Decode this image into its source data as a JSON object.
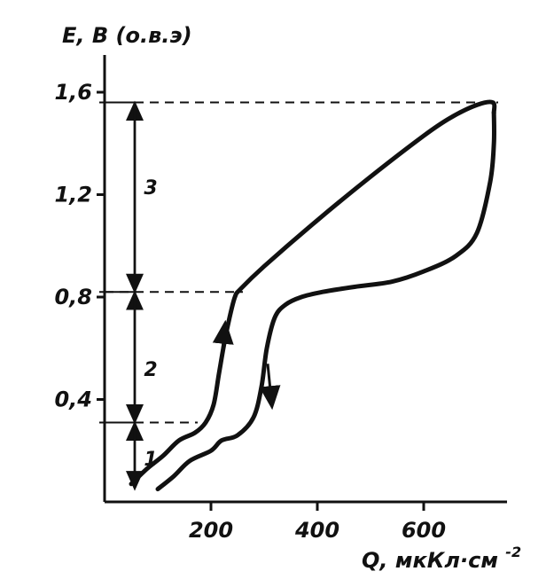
{
  "chart_data": {
    "type": "line",
    "title": "",
    "ylabel": "E, B (o.в.э)",
    "xlabel": "Q, мкКл·см",
    "xlabel_exp": "-2",
    "xlim": [
      0,
      760
    ],
    "ylim": [
      0,
      1.6
    ],
    "x_ticks": [
      {
        "value": 200,
        "label": "200"
      },
      {
        "value": 400,
        "label": "400"
      },
      {
        "value": 600,
        "label": "600"
      }
    ],
    "y_ticks": [
      {
        "value": 0.4,
        "label": "0,4"
      },
      {
        "value": 0.8,
        "label": "0,8"
      },
      {
        "value": 1.2,
        "label": "1,2"
      },
      {
        "value": 1.6,
        "label": "1,6"
      }
    ],
    "grid": false,
    "legend": "none",
    "series": [
      {
        "direction": "anodic (up)",
        "x": [
          50,
          80,
          110,
          140,
          170,
          190,
          205,
          215,
          225,
          235,
          245,
          255,
          300,
          400,
          500,
          600,
          650,
          700,
          730,
          732
        ],
        "y": [
          0.07,
          0.13,
          0.18,
          0.24,
          0.27,
          0.31,
          0.38,
          0.5,
          0.62,
          0.72,
          0.8,
          0.83,
          0.92,
          1.1,
          1.27,
          1.43,
          1.5,
          1.55,
          1.56,
          1.52
        ]
      },
      {
        "direction": "cathodic (down)",
        "x": [
          732,
          732,
          725,
          700,
          660,
          600,
          540,
          470,
          410,
          370,
          340,
          320,
          305,
          295,
          280,
          250,
          220,
          200,
          160,
          130,
          100
        ],
        "y": [
          1.52,
          1.4,
          1.25,
          1.05,
          0.96,
          0.9,
          0.86,
          0.84,
          0.82,
          0.8,
          0.77,
          0.72,
          0.6,
          0.45,
          0.33,
          0.26,
          0.24,
          0.2,
          0.16,
          0.1,
          0.05
        ]
      }
    ],
    "reference_levels": [
      0.31,
      0.82,
      1.56
    ],
    "regions": [
      {
        "label": "1",
        "y": 0.17
      },
      {
        "label": "2",
        "y": 0.52
      },
      {
        "label": "3",
        "y": 1.23
      }
    ],
    "direction_arrows": [
      {
        "x": 222,
        "y": 0.6,
        "dir": "up"
      },
      {
        "x": 310,
        "y": 0.47,
        "dir": "down"
      }
    ]
  }
}
